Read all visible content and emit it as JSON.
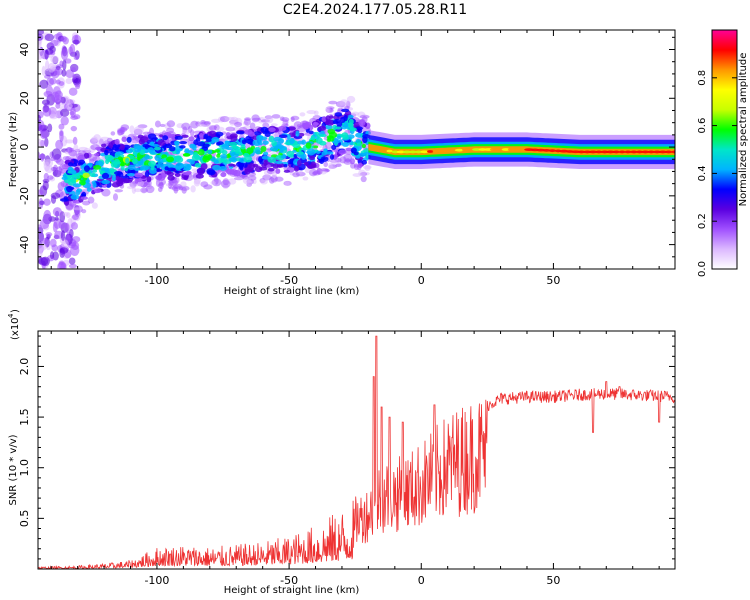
{
  "title": "C2E4.2024.177.05.28.R11",
  "chart_data": [
    {
      "type": "heatmap",
      "xlabel": "Height of straight line (km)",
      "ylabel": "Frequency (Hz)",
      "xlim": [
        -145,
        96
      ],
      "ylim": [
        -50,
        48
      ],
      "xticks": [
        -100,
        -50,
        0,
        50
      ],
      "yticks": [
        -40,
        -20,
        0,
        20,
        40
      ],
      "colorbar": {
        "label": "Normalized spectral amplitude",
        "range": [
          0,
          1
        ],
        "ticks": [
          0.0,
          0.2,
          0.4,
          0.6,
          0.8
        ],
        "colors": [
          "#ffffff",
          "#dcb8ff",
          "#a050ff",
          "#5a00e0",
          "#0000ff",
          "#00b4ff",
          "#00e6c8",
          "#00ff00",
          "#c8ff00",
          "#ffff00",
          "#ff9600",
          "#ff0000",
          "#ff0096"
        ]
      },
      "ridge": [
        [
          -130,
          -14
        ],
        [
          -120,
          -8
        ],
        [
          -110,
          -5
        ],
        [
          -100,
          -4
        ],
        [
          -90,
          -4
        ],
        [
          -80,
          -3
        ],
        [
          -70,
          -2
        ],
        [
          -60,
          -1
        ],
        [
          -50,
          -1
        ],
        [
          -40,
          1
        ],
        [
          -30,
          6
        ],
        [
          -27,
          8
        ],
        [
          -25,
          2
        ],
        [
          -20,
          0
        ],
        [
          -15,
          -1
        ],
        [
          -10,
          -2
        ],
        [
          0,
          -2
        ],
        [
          20,
          -1
        ],
        [
          40,
          -1
        ],
        [
          60,
          -2
        ],
        [
          80,
          -2
        ],
        [
          96,
          -2
        ]
      ]
    },
    {
      "type": "line",
      "xlabel": "Height of straight line (km)",
      "ylabel": "SNR (10 * v/v)",
      "yscale_label": "(x10",
      "yscale_exp": "4",
      "yscale_close": ")",
      "xlim": [
        -145,
        96
      ],
      "ylim": [
        0,
        2.35
      ],
      "xticks": [
        -100,
        -50,
        0,
        50
      ],
      "yticks": [
        0.5,
        1.0,
        1.5,
        2.0
      ],
      "ytick_labels": [
        "0.5",
        "1.0",
        "1.5",
        "2.0"
      ],
      "color": "#ee3333",
      "envelope": [
        [
          -145,
          0.02
        ],
        [
          -130,
          0.03
        ],
        [
          -120,
          0.05
        ],
        [
          -110,
          0.08
        ],
        [
          -100,
          0.2
        ],
        [
          -90,
          0.22
        ],
        [
          -80,
          0.2
        ],
        [
          -70,
          0.22
        ],
        [
          -60,
          0.25
        ],
        [
          -50,
          0.3
        ],
        [
          -40,
          0.4
        ],
        [
          -30,
          0.55
        ],
        [
          -20,
          0.75
        ],
        [
          -15,
          1.0
        ],
        [
          -10,
          1.0
        ],
        [
          -5,
          1.05
        ],
        [
          0,
          1.15
        ],
        [
          10,
          1.4
        ],
        [
          20,
          1.55
        ],
        [
          30,
          1.68
        ],
        [
          40,
          1.7
        ],
        [
          50,
          1.7
        ],
        [
          60,
          1.72
        ],
        [
          70,
          1.73
        ],
        [
          80,
          1.72
        ],
        [
          96,
          1.7
        ]
      ],
      "spikes": [
        [
          -17,
          2.3
        ],
        [
          -18,
          1.9
        ],
        [
          -15,
          1.6
        ],
        [
          -12,
          1.5
        ],
        [
          -7,
          1.45
        ],
        [
          5,
          1.62
        ],
        [
          70,
          1.85
        ],
        [
          75,
          1.8
        ],
        [
          65,
          1.35
        ],
        [
          90,
          1.45
        ]
      ]
    }
  ]
}
